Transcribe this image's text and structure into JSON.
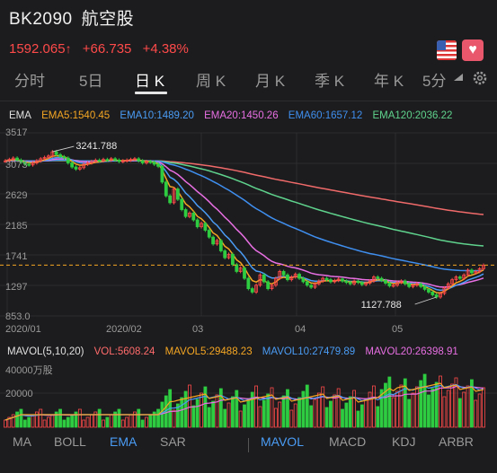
{
  "header": {
    "code": "BK2090",
    "name": "航空股",
    "price": "1592.065",
    "arrow": "↑",
    "change": "+66.735",
    "change_pct": "+4.38%"
  },
  "colors": {
    "up": "#ff4a4a",
    "down": "#2ecc40",
    "ema5": "#f5a623",
    "ema10": "#4a9cf5",
    "ema20": "#e86fe3",
    "ema60": "#3f8ff0",
    "ema120": "#5fd38d",
    "ema250": "#f06a6a"
  },
  "tabs": [
    "分时",
    "5日",
    "日 K",
    "周 K",
    "月 K",
    "季 K",
    "年 K",
    "5分"
  ],
  "active_tab": "日 K",
  "ema_legend": {
    "label": "EMA",
    "ema5": "EMA5:1540.45",
    "ema10": "EMA10:1489.20",
    "ema20": "EMA20:1450.26",
    "ema60": "EMA60:1657.12",
    "ema120": "EMA120:2036.22"
  },
  "y_axis": [
    "3517",
    "3073",
    "2629",
    "2185",
    "1741",
    "1297",
    "853.0"
  ],
  "x_axis": [
    "2020/01",
    "2020/02",
    "03",
    "04",
    "05"
  ],
  "annotations": {
    "high": "3241.788",
    "low": "1127.788"
  },
  "vol_legend": {
    "label": "MAVOL(5,10,20)",
    "vol": "VOL:5608.24",
    "mavol5": "MAVOL5:29488.23",
    "mavol10": "MAVOL10:27479.89",
    "mavol20": "MAVOL20:26398.91"
  },
  "vol_axis": [
    "40000万股",
    "20000"
  ],
  "indicators": [
    "MA",
    "BOLL",
    "EMA",
    "SAR",
    "MAVOL",
    "MACD",
    "KDJ",
    "ARBR"
  ],
  "chart_data": {
    "type": "candlestick",
    "ylim": [
      853.0,
      3517
    ],
    "y_ticks": [
      3517,
      3073,
      2629,
      2185,
      1741,
      1297,
      853.0
    ],
    "x_ticks": [
      "2020/01",
      "2020/02",
      "03",
      "04",
      "05"
    ],
    "close": [
      3110,
      3130,
      3150,
      3120,
      3090,
      3060,
      3050,
      3080,
      3110,
      3140,
      3160,
      3180,
      3241,
      3200,
      3170,
      3150,
      3080,
      3020,
      2990,
      3010,
      3060,
      3080,
      3100,
      3120,
      3110,
      3130,
      3120,
      3140,
      3120,
      3100,
      3110,
      3120,
      3130,
      3140,
      3110,
      3080,
      3100,
      3090,
      3060,
      3030,
      2800,
      2600,
      2500,
      2700,
      2550,
      2400,
      2300,
      2350,
      2250,
      2150,
      2200,
      2100,
      2000,
      1900,
      1950,
      1800,
      1700,
      1750,
      1600,
      1500,
      1550,
      1400,
      1250,
      1200,
      1300,
      1450,
      1350,
      1250,
      1300,
      1400,
      1500,
      1450,
      1380,
      1420,
      1460,
      1400,
      1350,
      1300,
      1270,
      1320,
      1360,
      1400,
      1380,
      1350,
      1370,
      1390,
      1360,
      1340,
      1320,
      1360,
      1340,
      1310,
      1330,
      1360,
      1420,
      1400,
      1370,
      1330,
      1290,
      1300,
      1340,
      1360,
      1320,
      1280,
      1300,
      1320,
      1280,
      1240,
      1200,
      1160,
      1128,
      1180,
      1260,
      1320,
      1380,
      1420,
      1400,
      1450,
      1520,
      1480,
      1500,
      1540,
      1592
    ],
    "ema5_last": 1540.45,
    "ema10_last": 1489.2,
    "ema20_last": 1450.26,
    "ema60_last": 1657.12,
    "ema120_last": 2036.22,
    "dashed_level": 1592.065,
    "high_label": 3241.788,
    "low_label": 1127.788
  }
}
